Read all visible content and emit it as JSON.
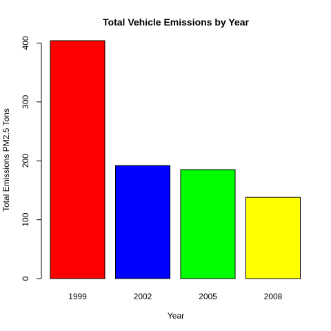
{
  "chart_data": {
    "type": "bar",
    "title": "Total Vehicle Emissions by Year",
    "xlabel": "Year",
    "ylabel": "Total Emissions PM2.5 Tons",
    "categories": [
      "1999",
      "2002",
      "2005",
      "2008"
    ],
    "values": [
      404,
      192,
      185,
      138
    ],
    "colors": [
      "#ff0000",
      "#0000ff",
      "#00ff00",
      "#ffff00"
    ],
    "yticks": [
      0,
      100,
      200,
      300,
      400
    ],
    "ylim": [
      0,
      404
    ],
    "grid": false,
    "legend": "none"
  }
}
